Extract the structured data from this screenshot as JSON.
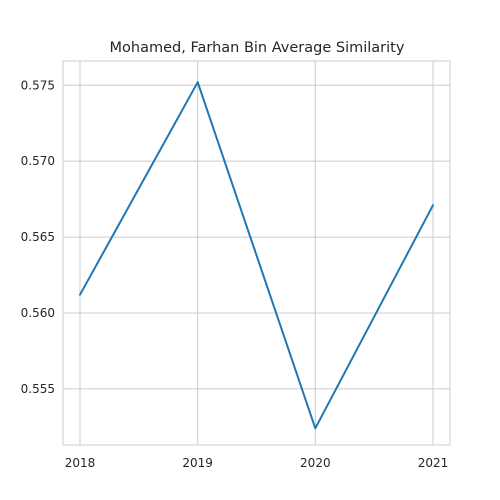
{
  "chart_data": {
    "type": "line",
    "title": "Mohamed, Farhan Bin Average Similarity",
    "xlabel": "",
    "ylabel": "",
    "x": [
      "2018",
      "2019",
      "2020",
      "2021"
    ],
    "series": [
      {
        "values": [
          0.5612,
          0.5752,
          0.5524,
          0.5671
        ],
        "color": "#1f77b4"
      }
    ],
    "ylim": [
      0.5513,
      0.5766
    ],
    "yticks": [
      "0.555",
      "0.560",
      "0.565",
      "0.570",
      "0.575"
    ],
    "grid": true,
    "legend": "none"
  }
}
